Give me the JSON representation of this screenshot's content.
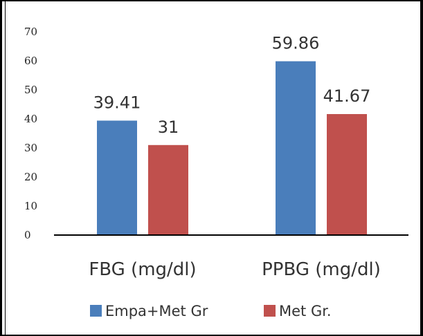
{
  "chart_data": {
    "type": "bar",
    "categories": [
      "FBG (mg/dl)",
      "PPBG (mg/dl)"
    ],
    "series": [
      {
        "name": "Empa+Met Gr",
        "values": [
          39.41,
          59.86
        ],
        "labels": [
          "39.41",
          "59.86"
        ],
        "color": "#4a7ebb"
      },
      {
        "name": "Met Gr.",
        "values": [
          31,
          41.67
        ],
        "labels": [
          "31",
          "41.67"
        ],
        "color": "#c0504d"
      }
    ],
    "ylim": [
      0,
      70
    ],
    "yticks": [
      "0",
      "10",
      "20",
      "30",
      "40",
      "50",
      "60",
      "70"
    ],
    "grid": false,
    "legend": "bottom"
  }
}
